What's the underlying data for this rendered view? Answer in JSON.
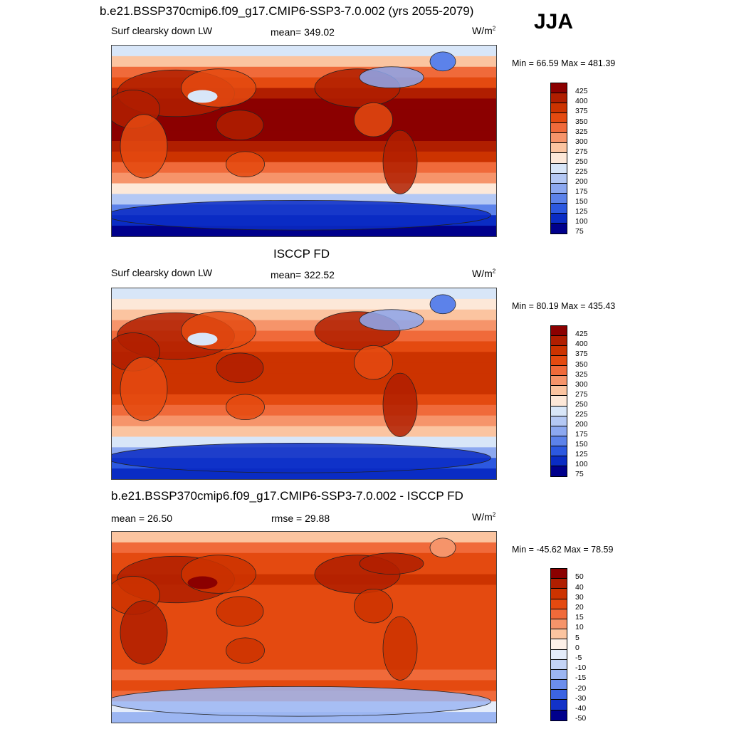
{
  "season": "JJA",
  "panels": [
    {
      "title": "b.e21.BSSP370cmip6.f09_g17.CMIP6-SSP3-7.0.002 (yrs 2055-2079)",
      "left_label": "Surf clearsky down LW",
      "center_label": "mean= 349.02",
      "units_base": "W/m",
      "units_exp": "2",
      "minmax": "Min =  66.59 Max = 481.39",
      "colorbar_levels": [
        "425",
        "400",
        "375",
        "350",
        "325",
        "300",
        "275",
        "250",
        "225",
        "200",
        "175",
        "150",
        "125",
        "100",
        "75"
      ],
      "colors": [
        "#8b0000",
        "#b01e00",
        "#cc3300",
        "#e44a10",
        "#f06a3a",
        "#f6946a",
        "#fbc4a0",
        "#fde8d8",
        "#d8e6f8",
        "#b4c8f4",
        "#8ca8f0",
        "#5c82ea",
        "#2c58e0",
        "#0a2cc4",
        "#00008c"
      ],
      "field": "abs"
    },
    {
      "title": "ISCCP FD",
      "left_label": "Surf clearsky down LW",
      "center_label": "mean= 322.52",
      "units_base": "W/m",
      "units_exp": "2",
      "minmax": "Min =  80.19 Max = 435.43",
      "colorbar_levels": [
        "425",
        "400",
        "375",
        "350",
        "325",
        "300",
        "275",
        "250",
        "225",
        "200",
        "175",
        "150",
        "125",
        "100",
        "75"
      ],
      "colors": [
        "#8b0000",
        "#b01e00",
        "#cc3300",
        "#e44a10",
        "#f06a3a",
        "#f6946a",
        "#fbc4a0",
        "#fde8d8",
        "#d8e6f8",
        "#b4c8f4",
        "#8ca8f0",
        "#5c82ea",
        "#2c58e0",
        "#0a2cc4",
        "#00008c"
      ],
      "field": "obs"
    },
    {
      "title": "b.e21.BSSP370cmip6.f09_g17.CMIP6-SSP3-7.0.002 - ISCCP FD",
      "left_label": "mean =  26.50",
      "center_label": "rmse =  29.88",
      "units_base": "W/m",
      "units_exp": "2",
      "minmax": "Min = -45.62 Max =  78.59",
      "colorbar_levels": [
        "50",
        "40",
        "30",
        "20",
        "15",
        "10",
        "5",
        "0",
        "-5",
        "-10",
        "-15",
        "-20",
        "-30",
        "-40",
        "-50"
      ],
      "colors": [
        "#8b0000",
        "#b01e00",
        "#cc3300",
        "#e44a10",
        "#f06a3a",
        "#f6946a",
        "#fbc4a0",
        "#fdf0e8",
        "#e4ecfa",
        "#c4d4f6",
        "#9cb6f2",
        "#6c8eec",
        "#3c64e2",
        "#1232c8",
        "#00008c"
      ],
      "field": "diff"
    }
  ]
}
